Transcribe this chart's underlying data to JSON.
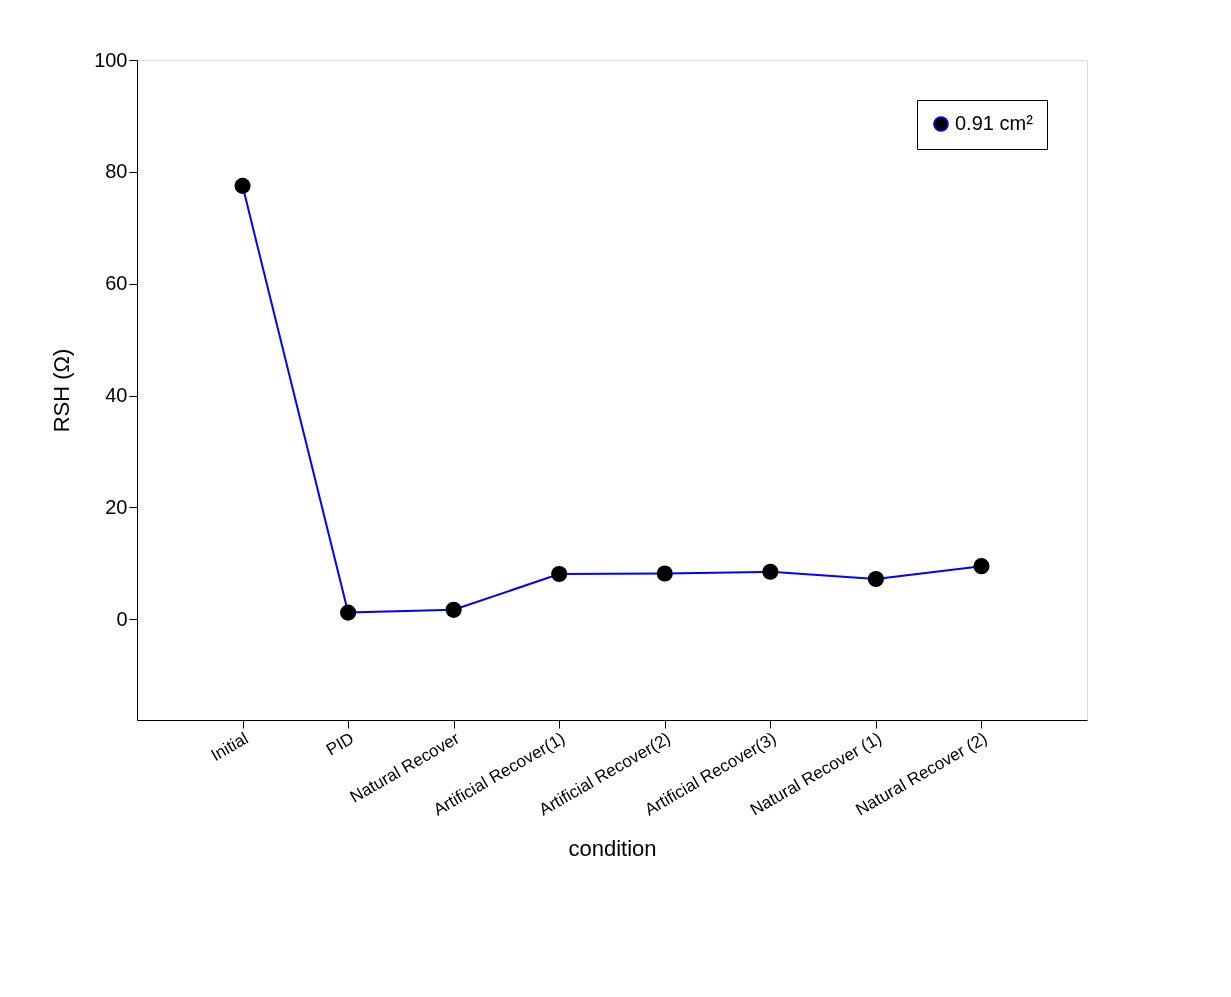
{
  "chart_data": {
    "type": "line",
    "xlabel": "condition",
    "ylabel": "RSH (Ω)",
    "categories": [
      "Initial",
      "PID",
      "Natural Recover",
      "Artificial Recover(1)",
      "Artificial Recover(2)",
      "Artificial Recover(3)",
      "Natural Recover (1)",
      "Natural Recover (2)"
    ],
    "series": [
      {
        "name": "0.91 cm²",
        "color": "#0000ff",
        "values": [
          77.5,
          1.2,
          1.7,
          8.1,
          8.2,
          8.5,
          7.2,
          9.5
        ]
      }
    ],
    "ylim": [
      -18,
      100
    ],
    "yticks": [
      0,
      20,
      40,
      60,
      80,
      100
    ],
    "grid": false,
    "legend": "top right",
    "marker": "circle",
    "line_style": "solid"
  }
}
